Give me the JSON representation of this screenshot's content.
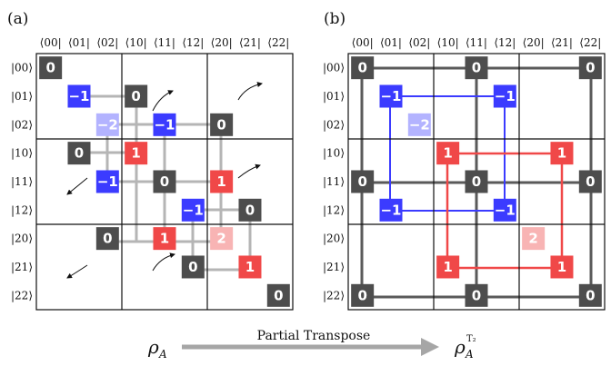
{
  "panels": [
    {
      "label": "(a)",
      "col_headers": [
        "⟨00|",
        "⟨01|",
        "⟨02|",
        "⟨10|",
        "⟨11|",
        "⟨12|",
        "⟨20|",
        "⟨21|",
        "⟨22|"
      ],
      "row_headers": [
        "|00⟩",
        "|01⟩",
        "|02⟩",
        "|10⟩",
        "|11⟩",
        "|12⟩",
        "|20⟩",
        "|21⟩",
        "|22⟩"
      ],
      "cells": [
        {
          "r": 0,
          "c": 0,
          "value": "0",
          "color": "#4d4d4d"
        },
        {
          "r": 1,
          "c": 1,
          "value": "−1",
          "color": "#3b3bff"
        },
        {
          "r": 1,
          "c": 3,
          "value": "0",
          "color": "#4d4d4d"
        },
        {
          "r": 2,
          "c": 2,
          "value": "−2",
          "color": "#b3b3ff"
        },
        {
          "r": 2,
          "c": 4,
          "value": "−1",
          "color": "#3b3bff"
        },
        {
          "r": 2,
          "c": 6,
          "value": "0",
          "color": "#4d4d4d"
        },
        {
          "r": 3,
          "c": 1,
          "value": "0",
          "color": "#4d4d4d"
        },
        {
          "r": 3,
          "c": 3,
          "value": "1",
          "color": "#f04848"
        },
        {
          "r": 4,
          "c": 2,
          "value": "−1",
          "color": "#3b3bff"
        },
        {
          "r": 4,
          "c": 4,
          "value": "0",
          "color": "#4d4d4d"
        },
        {
          "r": 4,
          "c": 6,
          "value": "1",
          "color": "#f04848"
        },
        {
          "r": 5,
          "c": 5,
          "value": "−1",
          "color": "#3b3bff"
        },
        {
          "r": 5,
          "c": 7,
          "value": "0",
          "color": "#4d4d4d"
        },
        {
          "r": 6,
          "c": 2,
          "value": "0",
          "color": "#4d4d4d"
        },
        {
          "r": 6,
          "c": 4,
          "value": "1",
          "color": "#f04848"
        },
        {
          "r": 6,
          "c": 6,
          "value": "2",
          "color": "#f8b4b4"
        },
        {
          "r": 7,
          "c": 5,
          "value": "0",
          "color": "#4d4d4d"
        },
        {
          "r": 7,
          "c": 7,
          "value": "1",
          "color": "#f04848"
        },
        {
          "r": 8,
          "c": 8,
          "value": "0",
          "color": "#4d4d4d"
        }
      ]
    },
    {
      "label": "(b)",
      "col_headers": [
        "⟨00|",
        "⟨01|",
        "⟨02|",
        "⟨10|",
        "⟨11|",
        "⟨12|",
        "⟨20|",
        "⟨21|",
        "⟨22|"
      ],
      "row_headers": [
        "|00⟩",
        "|01⟩",
        "|02⟩",
        "|10⟩",
        "|11⟩",
        "|12⟩",
        "|20⟩",
        "|21⟩",
        "|22⟩"
      ],
      "cells": [
        {
          "r": 0,
          "c": 0,
          "value": "0",
          "color": "#4d4d4d"
        },
        {
          "r": 0,
          "c": 4,
          "value": "0",
          "color": "#4d4d4d"
        },
        {
          "r": 0,
          "c": 8,
          "value": "0",
          "color": "#4d4d4d"
        },
        {
          "r": 1,
          "c": 1,
          "value": "−1",
          "color": "#3b3bff"
        },
        {
          "r": 1,
          "c": 5,
          "value": "−1",
          "color": "#3b3bff"
        },
        {
          "r": 2,
          "c": 2,
          "value": "−2",
          "color": "#b3b3ff"
        },
        {
          "r": 3,
          "c": 3,
          "value": "1",
          "color": "#f04848"
        },
        {
          "r": 3,
          "c": 7,
          "value": "1",
          "color": "#f04848"
        },
        {
          "r": 4,
          "c": 0,
          "value": "0",
          "color": "#4d4d4d"
        },
        {
          "r": 4,
          "c": 4,
          "value": "0",
          "color": "#4d4d4d"
        },
        {
          "r": 4,
          "c": 8,
          "value": "0",
          "color": "#4d4d4d"
        },
        {
          "r": 5,
          "c": 1,
          "value": "−1",
          "color": "#3b3bff"
        },
        {
          "r": 5,
          "c": 5,
          "value": "−1",
          "color": "#3b3bff"
        },
        {
          "r": 6,
          "c": 6,
          "value": "2",
          "color": "#f8b4b4"
        },
        {
          "r": 7,
          "c": 3,
          "value": "1",
          "color": "#f04848"
        },
        {
          "r": 7,
          "c": 7,
          "value": "1",
          "color": "#f04848"
        },
        {
          "r": 8,
          "c": 0,
          "value": "0",
          "color": "#4d4d4d"
        },
        {
          "r": 8,
          "c": 4,
          "value": "0",
          "color": "#4d4d4d"
        },
        {
          "r": 8,
          "c": 8,
          "value": "0",
          "color": "#4d4d4d"
        }
      ]
    }
  ],
  "caption": {
    "text": "Partial Transpose",
    "rho_left": "ρ",
    "rho_left_sub": "A",
    "rho_right": "ρ",
    "rho_right_sub": "A",
    "rho_right_sup": "T₂"
  },
  "colors": {
    "dark": "#4d4d4d",
    "blue": "#3b3bff",
    "light_blue": "#b3b3ff",
    "red": "#f04848",
    "light_red": "#f8b4b4",
    "connector_gray": "#b5b5b5",
    "arrow_gray": "#a6a6a6"
  }
}
